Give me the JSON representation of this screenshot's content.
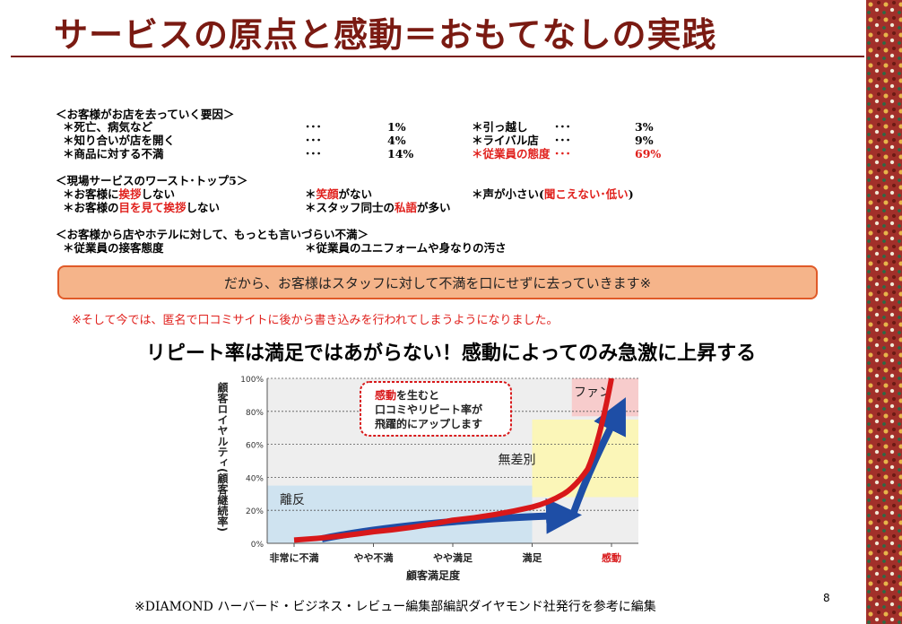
{
  "title": "サービスの原点と感動＝おもてなしの実践",
  "leave_reasons": {
    "heading": "＜お客様がお店を去っていく要因＞",
    "rows": [
      {
        "label": "＊死亡、病気など",
        "dots": "･･･",
        "value": "1%"
      },
      {
        "label": "＊知り合いが店を開く",
        "dots": "･･･",
        "value": "4%"
      },
      {
        "label": "＊商品に対する不満",
        "dots": "･･･",
        "value": "14%"
      }
    ],
    "rows_right": [
      {
        "label": "＊引っ越し",
        "dots": "･･･",
        "value": "3%"
      },
      {
        "label": "＊ライバル店",
        "dots": "･･･",
        "value": "9%"
      },
      {
        "label": "＊従業員の態度",
        "dots": "･･･",
        "value": "69%"
      }
    ]
  },
  "worst": {
    "heading": "＜現場サービスのワースト･トップ5＞",
    "item1_pre": "＊お客様に",
    "item1_red": "挨拶",
    "item1_post": "しない",
    "item2_pre": "＊",
    "item2_red": "笑顔",
    "item2_post": "がない",
    "item3_pre": "＊声が小さい(",
    "item3_red": "聞こえない･低い",
    "item3_post": ")",
    "item4_pre": "＊お客様の",
    "item4_red1": "目を見て",
    "item4_red2": "挨拶",
    "item4_post": "しない",
    "item5_pre": "＊スタッフ同士の",
    "item5_red": "私語",
    "item5_post": "が多い"
  },
  "hard_to_say": {
    "heading": "＜お客様から店やホテルに対して、もっとも言いづらい不満＞",
    "item1": "＊従業員の接客態度",
    "item2": "＊従業員のユニフォームや身なりの汚さ"
  },
  "banner": "だから、お客様はスタッフに対して不満を口にせずに去っていきます※",
  "note": "※そして今では、匿名で口コミサイトに後から書き込みを行われてしまうようになりました。",
  "heading": "リピート率は満足ではあがらない！感動によってのみ急激に上昇する",
  "chart_data": {
    "type": "line",
    "ylabel": "顧客ロイヤルティ(顧客継続率)",
    "xlabel": "顧客満足度",
    "yticks": [
      "0%",
      "20%",
      "40%",
      "60%",
      "80%",
      "100%"
    ],
    "ylim": [
      0,
      100
    ],
    "categories": [
      "非常に不満",
      "やや不満",
      "やや満足",
      "満足",
      "感動"
    ],
    "regions": [
      {
        "label": "離反",
        "y_from": 0,
        "y_to": 35
      },
      {
        "label": "無差別",
        "y_from": 28,
        "y_to": 75
      },
      {
        "label": "ファン",
        "y_from": 77,
        "y_to": 100
      }
    ],
    "series": [
      {
        "x": [
          0,
          1,
          2,
          3,
          3.4,
          3.7,
          4
        ],
        "y": [
          2,
          7,
          14,
          22,
          30,
          45,
          100
        ]
      }
    ],
    "callout": {
      "red": "感動",
      "line1_rest": "を生むと",
      "line2": "口コミやリピート率が",
      "line3": "飛躍的にアップします"
    },
    "colors": {
      "curve": "#d8181a",
      "arrow": "#1e4ea6",
      "rift": "#cfe3f0",
      "neutral": "#fbf6b8",
      "fan": "#f7cccc",
      "plot_bg": "#eeeeee"
    }
  },
  "source": "※DIAMOND ハーバード・ビジネス・レビュー編集部編訳ダイヤモンド社発行を参考に編集",
  "page_number": "8"
}
